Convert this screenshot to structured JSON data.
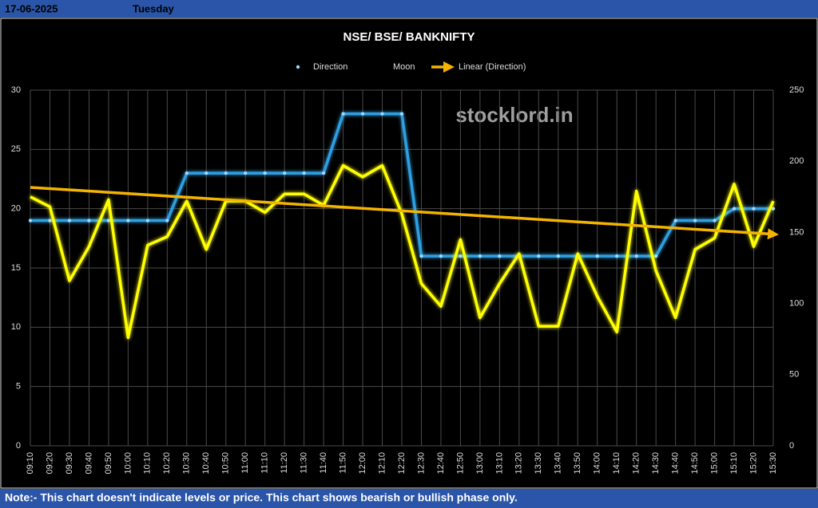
{
  "header": {
    "date": "17-06-2025",
    "day": "Tuesday"
  },
  "chart_data": {
    "type": "line",
    "title": "NSE/ BSE/ BANKNIFTY",
    "watermark": "stocklord.in",
    "categories": [
      "09:10",
      "09:20",
      "09:30",
      "09:40",
      "09:50",
      "10:00",
      "10:10",
      "10:20",
      "10:30",
      "10:40",
      "10:50",
      "11:00",
      "11:10",
      "11:20",
      "11:30",
      "11:40",
      "11:50",
      "12:00",
      "12:10",
      "12:20",
      "12:30",
      "12:40",
      "12:50",
      "13:00",
      "13:10",
      "13:20",
      "13:30",
      "13:40",
      "13:50",
      "14:00",
      "14:10",
      "14:20",
      "14:30",
      "14:40",
      "14:50",
      "15:00",
      "15:10",
      "15:20",
      "15:30"
    ],
    "series": [
      {
        "name": "Direction",
        "color": "#2e9fe0",
        "axis": "y",
        "values": [
          19,
          19,
          19,
          19,
          19,
          19,
          19,
          19,
          23,
          23,
          23,
          23,
          23,
          23,
          23,
          23,
          28,
          28,
          28,
          28,
          16,
          16,
          16,
          16,
          16,
          16,
          16,
          16,
          16,
          16,
          16,
          16,
          16,
          19,
          19,
          19,
          20,
          20,
          20
        ]
      },
      {
        "name": "Moon",
        "color": "#ffff00",
        "axis": "y2",
        "values": [
          175,
          168,
          116,
          140,
          173,
          76,
          141,
          147,
          172,
          138,
          172,
          172,
          164,
          177,
          177,
          169,
          197,
          189,
          197,
          163,
          114,
          98,
          145,
          90,
          114,
          135,
          84,
          84,
          135,
          105,
          80,
          179,
          123,
          90,
          138,
          146,
          184,
          140,
          172
        ]
      }
    ],
    "trendline": {
      "name": "Linear (Direction)",
      "color": "#f5b400"
    },
    "ylim": [
      0,
      30
    ],
    "yticks": [
      0,
      5,
      10,
      15,
      20,
      25,
      30
    ],
    "y2lim": [
      0,
      250
    ],
    "y2ticks": [
      0,
      50,
      100,
      150,
      200,
      250
    ],
    "grid": true,
    "legend": "top"
  },
  "footer": {
    "note": "Note:- This chart doesn't indicate levels or price. This chart shows bearish or bullish phase only."
  }
}
